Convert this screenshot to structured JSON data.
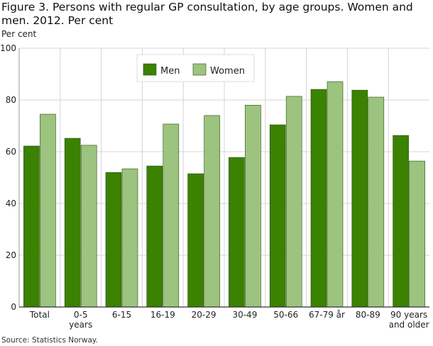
{
  "chart_data": {
    "type": "bar",
    "title": "Figure 3. Persons with regular GP consultation, by age groups. Women and men. 2012. Per cent",
    "ylabel": "Per cent",
    "xlabel": "",
    "ylim": [
      0,
      100
    ],
    "yticks": [
      0,
      20,
      40,
      60,
      80,
      100
    ],
    "grid": true,
    "legend": "top-left inside",
    "categories": [
      [
        "Total"
      ],
      [
        "0-5",
        "years"
      ],
      [
        "6-15"
      ],
      [
        "16-19"
      ],
      [
        "20-29"
      ],
      [
        "30-49"
      ],
      [
        "50-66"
      ],
      [
        "67-79 år"
      ],
      [
        "80-89"
      ],
      [
        "90 years",
        "and older"
      ]
    ],
    "series": [
      {
        "name": "Men",
        "color": "#3a8200",
        "values": [
          62.2,
          65.2,
          52.0,
          54.5,
          51.5,
          57.8,
          70.4,
          84.1,
          83.8,
          66.3
        ]
      },
      {
        "name": "Women",
        "color": "#9cc47e",
        "values": [
          74.5,
          62.5,
          53.4,
          70.7,
          74.0,
          78.0,
          81.4,
          87.1,
          81.1,
          56.4
        ]
      }
    ]
  },
  "source": "Source: Statistics Norway."
}
